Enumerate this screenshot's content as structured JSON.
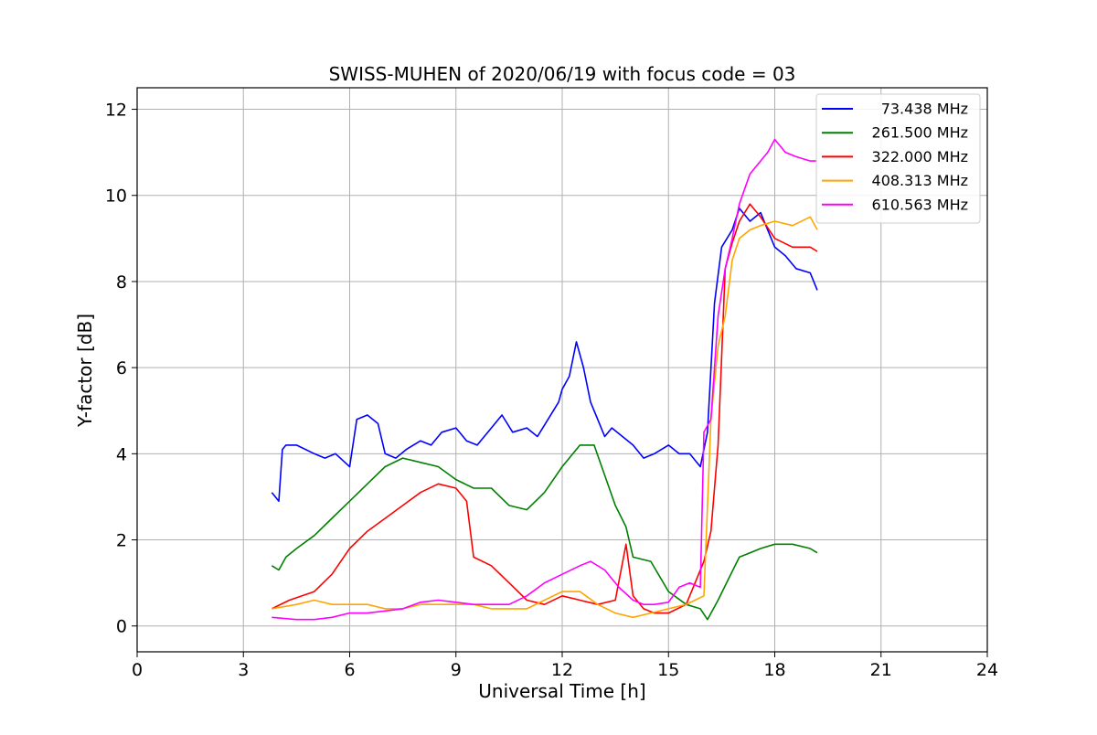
{
  "chart_data": {
    "type": "line",
    "title": "SWISS-MUHEN of 2020/06/19 with focus code = 03",
    "xlabel": "Universal Time [h]",
    "ylabel": "Y-factor [dB]",
    "xlim": [
      0,
      24
    ],
    "ylim": [
      -0.6,
      12.5
    ],
    "xticks": [
      0,
      3,
      6,
      9,
      12,
      15,
      18,
      21,
      24
    ],
    "yticks": [
      0,
      2,
      4,
      6,
      8,
      10,
      12
    ],
    "grid": true,
    "legend_position": "top-right",
    "series": [
      {
        "name": "73.438 MHz",
        "color": "#0000ff",
        "x": [
          3.8,
          3.9,
          4.0,
          4.1,
          4.2,
          4.5,
          5.0,
          5.3,
          5.6,
          6.0,
          6.2,
          6.5,
          6.8,
          7.0,
          7.3,
          7.6,
          8.0,
          8.3,
          8.6,
          9.0,
          9.3,
          9.6,
          10.0,
          10.3,
          10.6,
          11.0,
          11.3,
          11.6,
          11.9,
          12.0,
          12.2,
          12.4,
          12.6,
          12.8,
          13.0,
          13.2,
          13.4,
          13.7,
          14.0,
          14.3,
          14.6,
          15.0,
          15.3,
          15.6,
          15.9,
          16.1,
          16.3,
          16.5,
          16.8,
          17.0,
          17.3,
          17.6,
          18.0,
          18.3,
          18.6,
          19.0,
          19.2
        ],
        "y": [
          3.1,
          3.0,
          2.9,
          4.1,
          4.2,
          4.2,
          4.0,
          3.9,
          4.0,
          3.7,
          4.8,
          4.9,
          4.7,
          4.0,
          3.9,
          4.1,
          4.3,
          4.2,
          4.5,
          4.6,
          4.3,
          4.2,
          4.6,
          4.9,
          4.5,
          4.6,
          4.4,
          4.8,
          5.2,
          5.5,
          5.8,
          6.6,
          6.0,
          5.2,
          4.8,
          4.4,
          4.6,
          4.4,
          4.2,
          3.9,
          4.0,
          4.2,
          4.0,
          4.0,
          3.7,
          4.5,
          7.5,
          8.8,
          9.2,
          9.7,
          9.4,
          9.6,
          8.8,
          8.6,
          8.3,
          8.2,
          7.8
        ]
      },
      {
        "name": "261.500 MHz",
        "color": "#008000",
        "x": [
          3.8,
          4.0,
          4.2,
          4.5,
          5.0,
          5.5,
          6.0,
          6.5,
          7.0,
          7.5,
          8.0,
          8.5,
          9.0,
          9.5,
          10.0,
          10.5,
          11.0,
          11.5,
          12.0,
          12.5,
          12.9,
          13.2,
          13.5,
          13.8,
          14.0,
          14.5,
          15.0,
          15.5,
          15.9,
          16.1,
          16.4,
          16.7,
          17.0,
          17.3,
          17.6,
          18.0,
          18.5,
          19.0,
          19.2
        ],
        "y": [
          1.4,
          1.3,
          1.6,
          1.8,
          2.1,
          2.5,
          2.9,
          3.3,
          3.7,
          3.9,
          3.8,
          3.7,
          3.4,
          3.2,
          3.2,
          2.8,
          2.7,
          3.1,
          3.7,
          4.2,
          4.2,
          3.5,
          2.8,
          2.3,
          1.6,
          1.5,
          0.8,
          0.5,
          0.4,
          0.15,
          0.6,
          1.1,
          1.6,
          1.7,
          1.8,
          1.9,
          1.9,
          1.8,
          1.7
        ]
      },
      {
        "name": "322.000 MHz",
        "color": "#ff0000",
        "x": [
          3.8,
          4.3,
          5.0,
          5.5,
          6.0,
          6.5,
          7.0,
          7.5,
          8.0,
          8.5,
          9.0,
          9.3,
          9.5,
          10.0,
          10.5,
          11.0,
          11.5,
          12.0,
          12.5,
          13.0,
          13.5,
          13.8,
          14.0,
          14.3,
          14.6,
          15.0,
          15.5,
          16.0,
          16.2,
          16.4,
          16.6,
          16.8,
          17.0,
          17.3,
          17.6,
          18.0,
          18.5,
          19.0,
          19.2
        ],
        "y": [
          0.4,
          0.6,
          0.8,
          1.2,
          1.8,
          2.2,
          2.5,
          2.8,
          3.1,
          3.3,
          3.2,
          2.9,
          1.6,
          1.4,
          1.0,
          0.6,
          0.5,
          0.7,
          0.6,
          0.5,
          0.6,
          1.9,
          0.7,
          0.4,
          0.3,
          0.3,
          0.5,
          1.5,
          2.2,
          4.2,
          8.3,
          8.9,
          9.4,
          9.8,
          9.5,
          9.0,
          8.8,
          8.8,
          8.7
        ]
      },
      {
        "name": "408.313 MHz",
        "color": "#ffa500",
        "x": [
          3.8,
          4.5,
          5.0,
          5.5,
          6.0,
          6.5,
          7.0,
          7.5,
          8.0,
          8.5,
          9.0,
          9.5,
          10.0,
          10.5,
          11.0,
          11.5,
          12.0,
          12.5,
          13.0,
          13.5,
          14.0,
          14.5,
          15.0,
          15.5,
          16.0,
          16.2,
          16.4,
          16.6,
          16.8,
          17.0,
          17.3,
          17.6,
          18.0,
          18.5,
          19.0,
          19.2
        ],
        "y": [
          0.4,
          0.5,
          0.6,
          0.5,
          0.5,
          0.5,
          0.4,
          0.4,
          0.5,
          0.5,
          0.5,
          0.5,
          0.4,
          0.4,
          0.4,
          0.6,
          0.8,
          0.8,
          0.5,
          0.3,
          0.2,
          0.3,
          0.4,
          0.5,
          0.7,
          4.8,
          6.5,
          7.2,
          8.5,
          9.0,
          9.2,
          9.3,
          9.4,
          9.3,
          9.5,
          9.2
        ]
      },
      {
        "name": "610.563 MHz",
        "color": "#ff00ff",
        "x": [
          3.8,
          4.5,
          5.0,
          5.5,
          6.0,
          6.5,
          7.0,
          7.5,
          8.0,
          8.5,
          9.0,
          9.5,
          10.0,
          10.5,
          11.0,
          11.5,
          12.0,
          12.5,
          12.8,
          13.2,
          13.6,
          14.0,
          14.3,
          14.6,
          15.0,
          15.3,
          15.6,
          15.9,
          16.0,
          16.2,
          16.4,
          16.6,
          16.8,
          17.0,
          17.3,
          17.6,
          17.8,
          18.0,
          18.3,
          18.6,
          19.0,
          19.2
        ],
        "y": [
          0.2,
          0.15,
          0.15,
          0.2,
          0.3,
          0.3,
          0.35,
          0.4,
          0.55,
          0.6,
          0.55,
          0.5,
          0.5,
          0.5,
          0.7,
          1.0,
          1.2,
          1.4,
          1.5,
          1.3,
          0.9,
          0.6,
          0.5,
          0.5,
          0.55,
          0.9,
          1.0,
          0.9,
          4.5,
          4.8,
          7.2,
          8.3,
          9.0,
          9.8,
          10.5,
          10.8,
          11.0,
          11.3,
          11.0,
          10.9,
          10.8,
          10.8
        ]
      }
    ]
  }
}
